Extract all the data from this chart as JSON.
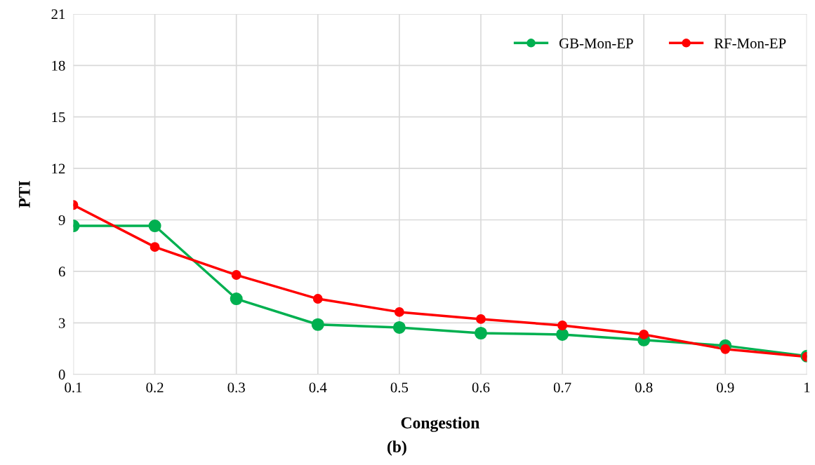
{
  "chart_data": {
    "type": "line",
    "xlabel": "Congestion",
    "ylabel": "PTI",
    "x": [
      0.1,
      0.2,
      0.3,
      0.4,
      0.5,
      0.6,
      0.7,
      0.8,
      0.9,
      1
    ],
    "series": [
      {
        "name": "GB-Mon-EP",
        "color": "#00b050",
        "values": [
          8.65,
          8.65,
          4.4,
          2.9,
          2.73,
          2.4,
          2.32,
          2.0,
          1.67,
          1.06
        ]
      },
      {
        "name": "RF-Mon-EP",
        "color": "#ff0000",
        "values": [
          9.87,
          7.42,
          5.79,
          4.4,
          3.63,
          3.22,
          2.85,
          2.32,
          1.47,
          1.02
        ]
      }
    ],
    "xlim": [
      0.1,
      1
    ],
    "xticks": [
      0.1,
      0.2,
      0.3,
      0.4,
      0.5,
      0.6,
      0.7,
      0.8,
      0.9,
      1
    ],
    "ylim": [
      0,
      21
    ],
    "yticks": [
      0,
      3,
      6,
      9,
      12,
      15,
      18,
      21
    ],
    "grid": true,
    "legend": "top right",
    "marker": "circle",
    "line_style": "solid",
    "annotations": [
      "(b)"
    ]
  }
}
